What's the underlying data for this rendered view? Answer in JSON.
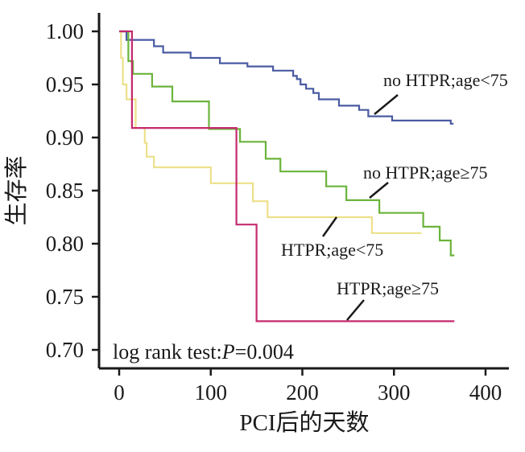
{
  "chart_data": {
    "type": "line",
    "step": true,
    "xlabel": "PCI后的天数",
    "ylabel": "生存率",
    "xlim": [
      0,
      400
    ],
    "ylim": [
      0.7,
      1.0
    ],
    "xticks": [
      "0",
      "100",
      "200",
      "300",
      "400"
    ],
    "yticks": [
      "1.00",
      "0.95",
      "0.90",
      "0.85",
      "0.80",
      "0.75",
      "0.70"
    ],
    "grid": false,
    "annotation": {
      "prefix": "log rank test:",
      "pvar": "P",
      "value": "=0.004"
    },
    "series": [
      {
        "name": "no HTPR;age<75",
        "color": "#4a5ba3",
        "points": [
          [
            0,
            1.0
          ],
          [
            8,
            1.0
          ],
          [
            8,
            0.992
          ],
          [
            38,
            0.992
          ],
          [
            38,
            0.986
          ],
          [
            48,
            0.986
          ],
          [
            48,
            0.98
          ],
          [
            78,
            0.98
          ],
          [
            78,
            0.975
          ],
          [
            110,
            0.975
          ],
          [
            110,
            0.97
          ],
          [
            140,
            0.97
          ],
          [
            140,
            0.967
          ],
          [
            168,
            0.967
          ],
          [
            168,
            0.963
          ],
          [
            190,
            0.963
          ],
          [
            190,
            0.958
          ],
          [
            194,
            0.958
          ],
          [
            194,
            0.955
          ],
          [
            198,
            0.955
          ],
          [
            198,
            0.95
          ],
          [
            204,
            0.95
          ],
          [
            204,
            0.946
          ],
          [
            212,
            0.946
          ],
          [
            212,
            0.942
          ],
          [
            218,
            0.942
          ],
          [
            218,
            0.936
          ],
          [
            240,
            0.936
          ],
          [
            240,
            0.93
          ],
          [
            262,
            0.93
          ],
          [
            262,
            0.926
          ],
          [
            272,
            0.926
          ],
          [
            272,
            0.92
          ],
          [
            298,
            0.92
          ],
          [
            298,
            0.916
          ],
          [
            362,
            0.916
          ],
          [
            362,
            0.913
          ],
          [
            365,
            0.913
          ]
        ]
      },
      {
        "name": "no HTPR;age≥75",
        "color": "#6bb43c",
        "points": [
          [
            0,
            1.0
          ],
          [
            10,
            1.0
          ],
          [
            10,
            0.972
          ],
          [
            15,
            0.972
          ],
          [
            15,
            0.96
          ],
          [
            36,
            0.96
          ],
          [
            36,
            0.948
          ],
          [
            58,
            0.948
          ],
          [
            58,
            0.934
          ],
          [
            98,
            0.934
          ],
          [
            98,
            0.908
          ],
          [
            132,
            0.908
          ],
          [
            132,
            0.896
          ],
          [
            160,
            0.896
          ],
          [
            160,
            0.88
          ],
          [
            176,
            0.88
          ],
          [
            176,
            0.868
          ],
          [
            226,
            0.868
          ],
          [
            226,
            0.854
          ],
          [
            248,
            0.854
          ],
          [
            248,
            0.841
          ],
          [
            284,
            0.841
          ],
          [
            284,
            0.829
          ],
          [
            332,
            0.829
          ],
          [
            332,
            0.816
          ],
          [
            350,
            0.816
          ],
          [
            350,
            0.803
          ],
          [
            362,
            0.803
          ],
          [
            362,
            0.789
          ],
          [
            366,
            0.789
          ]
        ]
      },
      {
        "name": "HTPR;age<75",
        "color": "#ede08a",
        "points": [
          [
            0,
            1.0
          ],
          [
            2,
            1.0
          ],
          [
            2,
            0.975
          ],
          [
            4,
            0.975
          ],
          [
            4,
            0.95
          ],
          [
            8,
            0.95
          ],
          [
            8,
            0.936
          ],
          [
            18,
            0.936
          ],
          [
            18,
            0.909
          ],
          [
            28,
            0.909
          ],
          [
            28,
            0.895
          ],
          [
            30,
            0.895
          ],
          [
            30,
            0.882
          ],
          [
            38,
            0.882
          ],
          [
            38,
            0.872
          ],
          [
            100,
            0.872
          ],
          [
            100,
            0.857
          ],
          [
            146,
            0.857
          ],
          [
            146,
            0.84
          ],
          [
            162,
            0.84
          ],
          [
            162,
            0.825
          ],
          [
            276,
            0.825
          ],
          [
            276,
            0.81
          ],
          [
            330,
            0.81
          ]
        ]
      },
      {
        "name": "HTPR;age≥75",
        "color": "#c42a6e",
        "points": [
          [
            0,
            1.0
          ],
          [
            14,
            1.0
          ],
          [
            14,
            0.909
          ],
          [
            128,
            0.909
          ],
          [
            128,
            0.818
          ],
          [
            150,
            0.818
          ],
          [
            150,
            0.727
          ],
          [
            366,
            0.727
          ]
        ]
      }
    ]
  }
}
